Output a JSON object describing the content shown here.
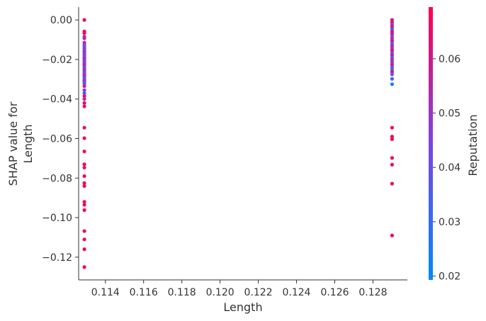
{
  "chart_data": {
    "type": "scatter",
    "title": "",
    "xlabel": "Length",
    "ylabel_lines": [
      "SHAP value for",
      "Length"
    ],
    "xlim": [
      0.1126,
      0.1298
    ],
    "ylim": [
      -0.1315,
      0.0065
    ],
    "xticks": [
      {
        "value": 0.114,
        "label": "0.114"
      },
      {
        "value": 0.116,
        "label": "0.116"
      },
      {
        "value": 0.118,
        "label": "0.118"
      },
      {
        "value": 0.12,
        "label": "0.120"
      },
      {
        "value": 0.122,
        "label": "0.122"
      },
      {
        "value": 0.124,
        "label": "0.124"
      },
      {
        "value": 0.126,
        "label": "0.126"
      },
      {
        "value": 0.128,
        "label": "0.128"
      }
    ],
    "yticks": [
      {
        "value": 0.0,
        "label": "0.00"
      },
      {
        "value": -0.02,
        "label": "−0.02"
      },
      {
        "value": -0.04,
        "label": "−0.04"
      },
      {
        "value": -0.06,
        "label": "−0.06"
      },
      {
        "value": -0.08,
        "label": "−0.08"
      },
      {
        "value": -0.1,
        "label": "−0.10"
      },
      {
        "value": -0.12,
        "label": "−0.12"
      }
    ],
    "grid": false,
    "colorbar": {
      "label": "Reputation",
      "range": [
        0.0193,
        0.0695
      ],
      "colors": [
        "#008afb",
        "#7d44e3",
        "#ff0052"
      ],
      "ticks": [
        {
          "value": 0.02,
          "label": "0.02"
        },
        {
          "value": 0.03,
          "label": "0.03"
        },
        {
          "value": 0.04,
          "label": "0.04"
        },
        {
          "value": 0.05,
          "label": "0.05"
        },
        {
          "value": 0.06,
          "label": "0.06"
        }
      ]
    },
    "series": [
      {
        "x": 0.1129,
        "points": [
          {
            "y": 0.0,
            "c": 0.068
          },
          {
            "y": -0.0058,
            "c": 0.066
          },
          {
            "y": -0.0067,
            "c": 0.065
          },
          {
            "y": -0.0085,
            "c": 0.058
          },
          {
            "y": -0.0093,
            "c": 0.052
          },
          {
            "y": -0.0115,
            "c": 0.06
          },
          {
            "y": -0.0125,
            "c": 0.045
          },
          {
            "y": -0.0135,
            "c": 0.04
          },
          {
            "y": -0.0145,
            "c": 0.05
          },
          {
            "y": -0.0155,
            "c": 0.036
          },
          {
            "y": -0.0163,
            "c": 0.055
          },
          {
            "y": -0.0172,
            "c": 0.042
          },
          {
            "y": -0.018,
            "c": 0.048
          },
          {
            "y": -0.0188,
            "c": 0.038
          },
          {
            "y": -0.0196,
            "c": 0.06
          },
          {
            "y": -0.0204,
            "c": 0.044
          },
          {
            "y": -0.0212,
            "c": 0.052
          },
          {
            "y": -0.022,
            "c": 0.04
          },
          {
            "y": -0.0228,
            "c": 0.065
          },
          {
            "y": -0.0236,
            "c": 0.046
          },
          {
            "y": -0.0244,
            "c": 0.035
          },
          {
            "y": -0.0252,
            "c": 0.058
          },
          {
            "y": -0.026,
            "c": 0.042
          },
          {
            "y": -0.0268,
            "c": 0.05
          },
          {
            "y": -0.0276,
            "c": 0.038
          },
          {
            "y": -0.0284,
            "c": 0.062
          },
          {
            "y": -0.0292,
            "c": 0.044
          },
          {
            "y": -0.03,
            "c": 0.034
          },
          {
            "y": -0.0308,
            "c": 0.055
          },
          {
            "y": -0.0316,
            "c": 0.041
          },
          {
            "y": -0.0324,
            "c": 0.03
          },
          {
            "y": -0.0335,
            "c": 0.06
          },
          {
            "y": -0.0355,
            "c": 0.048
          },
          {
            "y": -0.037,
            "c": 0.04
          },
          {
            "y": -0.0385,
            "c": 0.066
          },
          {
            "y": -0.04,
            "c": 0.052
          },
          {
            "y": -0.042,
            "c": 0.067
          },
          {
            "y": -0.0437,
            "c": 0.064
          },
          {
            "y": -0.0545,
            "c": 0.066
          },
          {
            "y": -0.0598,
            "c": 0.068
          },
          {
            "y": -0.0665,
            "c": 0.067
          },
          {
            "y": -0.073,
            "c": 0.068
          },
          {
            "y": -0.0747,
            "c": 0.066
          },
          {
            "y": -0.079,
            "c": 0.067
          },
          {
            "y": -0.0825,
            "c": 0.068
          },
          {
            "y": -0.084,
            "c": 0.066
          },
          {
            "y": -0.092,
            "c": 0.067
          },
          {
            "y": -0.0935,
            "c": 0.065
          },
          {
            "y": -0.0962,
            "c": 0.068
          },
          {
            "y": -0.1068,
            "c": 0.067
          },
          {
            "y": -0.111,
            "c": 0.068
          },
          {
            "y": -0.116,
            "c": 0.066
          },
          {
            "y": -0.125,
            "c": 0.068
          }
        ]
      },
      {
        "x": 0.129,
        "points": [
          {
            "y": 0.0,
            "c": 0.06
          },
          {
            "y": -0.0012,
            "c": 0.068
          },
          {
            "y": -0.0023,
            "c": 0.046
          },
          {
            "y": -0.0035,
            "c": 0.066
          },
          {
            "y": -0.0047,
            "c": 0.04
          },
          {
            "y": -0.0058,
            "c": 0.058
          },
          {
            "y": -0.007,
            "c": 0.064
          },
          {
            "y": -0.0082,
            "c": 0.044
          },
          {
            "y": -0.0094,
            "c": 0.052
          },
          {
            "y": -0.0106,
            "c": 0.062
          },
          {
            "y": -0.0118,
            "c": 0.038
          },
          {
            "y": -0.013,
            "c": 0.056
          },
          {
            "y": -0.0142,
            "c": 0.048
          },
          {
            "y": -0.0154,
            "c": 0.066
          },
          {
            "y": -0.0166,
            "c": 0.042
          },
          {
            "y": -0.0178,
            "c": 0.06
          },
          {
            "y": -0.019,
            "c": 0.036
          },
          {
            "y": -0.0202,
            "c": 0.054
          },
          {
            "y": -0.0214,
            "c": 0.046
          },
          {
            "y": -0.0226,
            "c": 0.064
          },
          {
            "y": -0.0238,
            "c": 0.04
          },
          {
            "y": -0.025,
            "c": 0.034
          },
          {
            "y": -0.0262,
            "c": 0.058
          },
          {
            "y": -0.0275,
            "c": 0.044
          },
          {
            "y": -0.0298,
            "c": 0.033
          },
          {
            "y": -0.0325,
            "c": 0.024
          },
          {
            "y": -0.0545,
            "c": 0.067
          },
          {
            "y": -0.059,
            "c": 0.068
          },
          {
            "y": -0.0603,
            "c": 0.066
          },
          {
            "y": -0.0698,
            "c": 0.068
          },
          {
            "y": -0.0732,
            "c": 0.065
          },
          {
            "y": -0.0828,
            "c": 0.067
          },
          {
            "y": -0.109,
            "c": 0.068
          }
        ]
      }
    ]
  }
}
